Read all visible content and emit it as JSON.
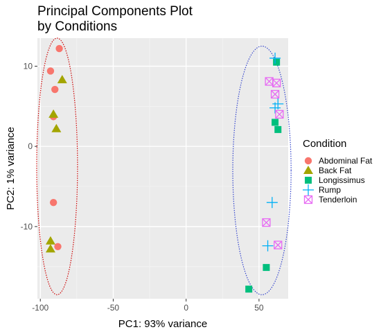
{
  "chart_data": {
    "type": "scatter",
    "title_lines": [
      "Principal Components Plot",
      "by Conditions"
    ],
    "xlabel": "PC1: 93% variance",
    "ylabel": "PC2: 1% variance",
    "xlim": [
      -102,
      70
    ],
    "ylim": [
      -19,
      13.5
    ],
    "xticks": [
      -100,
      -50,
      0,
      50
    ],
    "yticks": [
      -10,
      0,
      10
    ],
    "grid": true,
    "background": "#ebebeb",
    "legend": {
      "title": "Condition",
      "position": "right"
    },
    "series": [
      {
        "name": "Abdominal Fat",
        "shape": "circle",
        "color": "#f8766d",
        "points": [
          [
            -87,
            12.2
          ],
          [
            -93,
            9.4
          ],
          [
            -90,
            7.1
          ],
          [
            -91,
            3.7
          ],
          [
            -91,
            -7
          ],
          [
            -88,
            -12.5
          ]
        ]
      },
      {
        "name": "Back Fat",
        "shape": "triangle",
        "color": "#a3a500",
        "points": [
          [
            -85,
            8.3
          ],
          [
            -91,
            4
          ],
          [
            -89,
            2.2
          ],
          [
            -93,
            -11.8
          ],
          [
            -93,
            -12.8
          ]
        ]
      },
      {
        "name": "Longissimus",
        "shape": "square",
        "color": "#00bf7d",
        "points": [
          [
            62,
            10.5
          ],
          [
            61,
            3
          ],
          [
            63,
            2.1
          ],
          [
            55,
            -15.1
          ],
          [
            43,
            -17.8
          ]
        ]
      },
      {
        "name": "Rump",
        "shape": "plus",
        "color": "#00b0f6",
        "points": [
          [
            61,
            11
          ],
          [
            61,
            4.8
          ],
          [
            63,
            5.3
          ],
          [
            59,
            -7
          ],
          [
            56,
            -12.4
          ]
        ]
      },
      {
        "name": "Tenderloin",
        "shape": "boxx",
        "color": "#e76bf3",
        "points": [
          [
            57,
            8.1
          ],
          [
            62,
            7.9
          ],
          [
            61,
            6.5
          ],
          [
            64,
            4
          ],
          [
            55,
            -9.5
          ],
          [
            63,
            -12.3
          ]
        ]
      }
    ],
    "ellipses": [
      {
        "color": "#cc0000",
        "center": [
          -88.5,
          -2.5
        ],
        "radius": [
          14,
          16
        ]
      },
      {
        "color": "#3344cc",
        "center": [
          52,
          -3
        ],
        "radius": [
          20,
          15.5
        ]
      }
    ]
  }
}
